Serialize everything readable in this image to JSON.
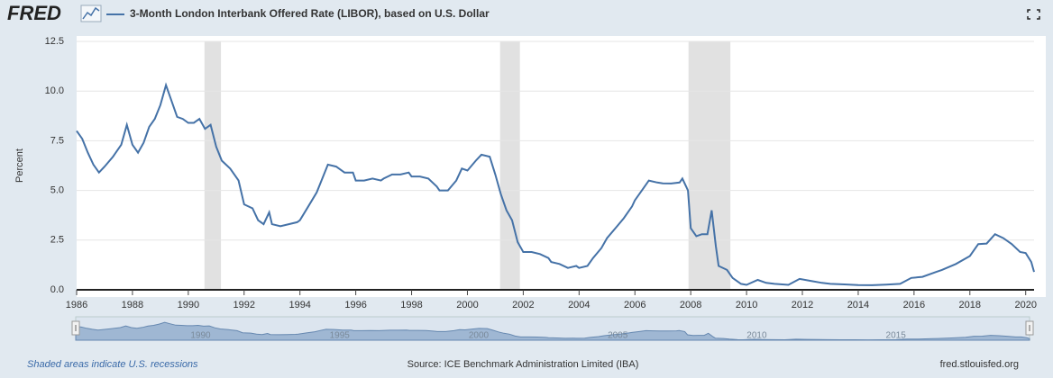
{
  "chart_data": {
    "type": "line",
    "brand": "FRED",
    "ylabel": "Percent",
    "note": "Shaded areas indicate U.S. recessions",
    "source": "Source: ICE Benchmark Administration Limited (IBA)",
    "site": "fred.stlouisfed.org",
    "x": [
      1986.0,
      1986.2,
      1986.4,
      1986.6,
      1986.8,
      1987.0,
      1987.3,
      1987.6,
      1987.8,
      1988.0,
      1988.2,
      1988.4,
      1988.6,
      1988.8,
      1989.0,
      1989.2,
      1989.4,
      1989.6,
      1989.8,
      1990.0,
      1990.2,
      1990.4,
      1990.6,
      1990.8,
      1991.0,
      1991.2,
      1991.5,
      1991.8,
      1992.0,
      1992.3,
      1992.5,
      1992.7,
      1992.9,
      1993.0,
      1993.3,
      1993.6,
      1993.9,
      1994.0,
      1994.3,
      1994.6,
      1994.8,
      1995.0,
      1995.3,
      1995.6,
      1995.9,
      1996.0,
      1996.3,
      1996.6,
      1996.9,
      1997.0,
      1997.3,
      1997.6,
      1997.9,
      1998.0,
      1998.3,
      1998.6,
      1998.9,
      1999.0,
      1999.3,
      1999.6,
      1999.8,
      2000.0,
      2000.3,
      2000.5,
      2000.8,
      2001.0,
      2001.2,
      2001.4,
      2001.6,
      2001.8,
      2002.0,
      2002.3,
      2002.6,
      2002.9,
      2003.0,
      2003.3,
      2003.6,
      2003.9,
      2004.0,
      2004.3,
      2004.5,
      2004.8,
      2005.0,
      2005.3,
      2005.6,
      2005.9,
      2006.0,
      2006.3,
      2006.5,
      2006.8,
      2007.0,
      2007.3,
      2007.6,
      2007.7,
      2007.9,
      2008.0,
      2008.2,
      2008.4,
      2008.6,
      2008.75,
      2008.9,
      2009.0,
      2009.3,
      2009.5,
      2009.8,
      2010.0,
      2010.4,
      2010.7,
      2011.0,
      2011.5,
      2011.9,
      2012.3,
      2012.7,
      2013.0,
      2013.5,
      2014.0,
      2014.5,
      2015.0,
      2015.5,
      2015.9,
      2016.3,
      2016.8,
      2017.0,
      2017.5,
      2018.0,
      2018.3,
      2018.6,
      2018.9,
      2019.2,
      2019.5,
      2019.8,
      2020.0,
      2020.2,
      2020.3
    ],
    "series": [
      {
        "name": "3-Month London Interbank Offered Rate (LIBOR), based on U.S. Dollar",
        "color": "#4572a7",
        "values": [
          8.0,
          7.6,
          6.9,
          6.3,
          5.9,
          6.2,
          6.7,
          7.3,
          8.3,
          7.3,
          6.9,
          7.4,
          8.2,
          8.6,
          9.3,
          10.3,
          9.5,
          8.7,
          8.6,
          8.4,
          8.4,
          8.6,
          8.1,
          8.3,
          7.2,
          6.5,
          6.1,
          5.5,
          4.3,
          4.1,
          3.5,
          3.3,
          3.9,
          3.3,
          3.2,
          3.3,
          3.4,
          3.5,
          4.2,
          4.9,
          5.6,
          6.3,
          6.2,
          5.9,
          5.9,
          5.5,
          5.5,
          5.6,
          5.5,
          5.6,
          5.8,
          5.8,
          5.9,
          5.7,
          5.7,
          5.6,
          5.2,
          5.0,
          5.0,
          5.5,
          6.1,
          6.0,
          6.5,
          6.8,
          6.7,
          5.8,
          4.8,
          4.0,
          3.5,
          2.4,
          1.9,
          1.9,
          1.8,
          1.6,
          1.4,
          1.3,
          1.1,
          1.2,
          1.1,
          1.2,
          1.6,
          2.1,
          2.6,
          3.1,
          3.6,
          4.2,
          4.5,
          5.1,
          5.5,
          5.4,
          5.36,
          5.35,
          5.4,
          5.6,
          5.0,
          3.1,
          2.7,
          2.8,
          2.8,
          4.0,
          2.2,
          1.2,
          1.0,
          0.6,
          0.3,
          0.25,
          0.5,
          0.35,
          0.3,
          0.25,
          0.55,
          0.45,
          0.35,
          0.3,
          0.27,
          0.24,
          0.23,
          0.26,
          0.3,
          0.6,
          0.65,
          0.9,
          1.0,
          1.3,
          1.7,
          2.3,
          2.33,
          2.8,
          2.6,
          2.3,
          1.9,
          1.85,
          1.4,
          0.9
        ]
      }
    ],
    "recessions": [
      {
        "start": 1990.58,
        "end": 1991.17
      },
      {
        "start": 2001.17,
        "end": 2001.88
      },
      {
        "start": 2007.92,
        "end": 2009.42
      }
    ],
    "xlim": [
      1986,
      2020.3
    ],
    "xticks": [
      1986,
      1988,
      1990,
      1992,
      1994,
      1996,
      1998,
      2000,
      2002,
      2004,
      2006,
      2008,
      2010,
      2012,
      2014,
      2016,
      2018,
      2020
    ],
    "ylim": [
      0,
      12.5
    ],
    "yticks": [
      {
        "value": 0,
        "label": "0.0"
      },
      2.5,
      {
        "value": 5,
        "label": "5.0"
      },
      7.5,
      {
        "value": 10,
        "label": "10.0"
      },
      12.5
    ],
    "grid": true,
    "navigator_ticks": [
      1990,
      1995,
      2000,
      2005,
      2010,
      2015
    ]
  }
}
